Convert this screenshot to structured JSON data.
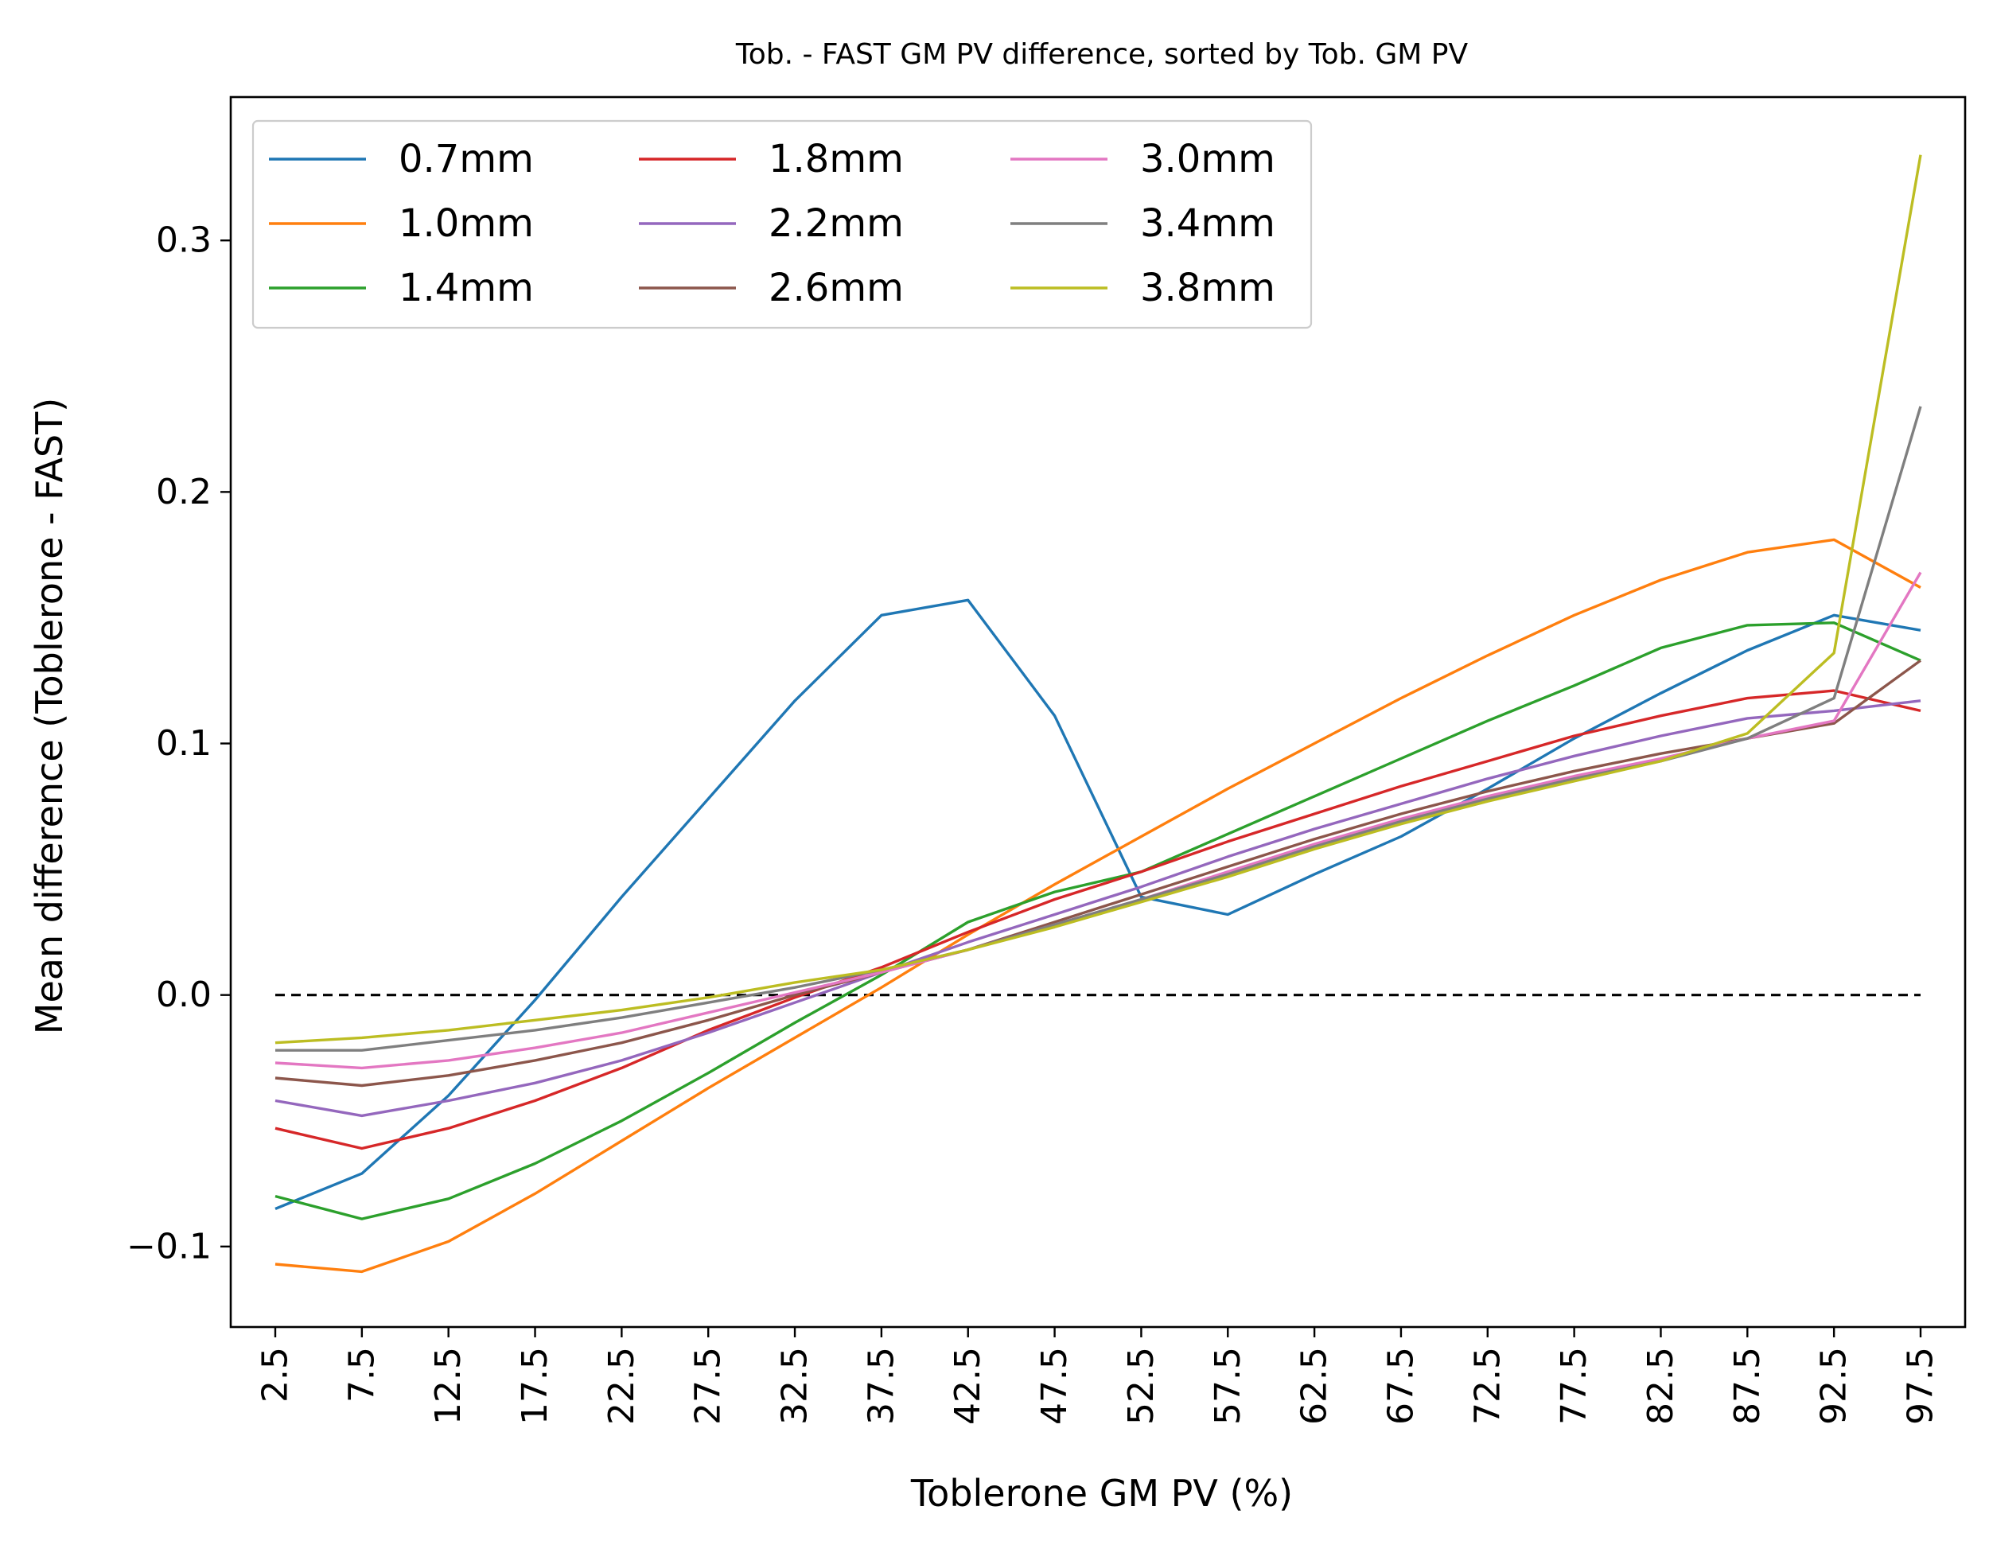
{
  "chart_data": {
    "type": "line",
    "title": "Tob. - FAST GM PV difference, sorted by Tob. GM PV",
    "xlabel": "Toblerone GM PV (%)",
    "ylabel": "Mean difference (Toblerone - FAST)",
    "categories": [
      "2.5",
      "7.5",
      "12.5",
      "17.5",
      "22.5",
      "27.5",
      "32.5",
      "37.5",
      "42.5",
      "47.5",
      "52.5",
      "57.5",
      "62.5",
      "67.5",
      "72.5",
      "77.5",
      "82.5",
      "87.5",
      "92.5",
      "97.5"
    ],
    "ylim": [
      -0.132,
      0.357
    ],
    "yticks": [
      -0.1,
      0.0,
      0.1,
      0.2,
      0.3
    ],
    "ytick_labels": [
      "−0.1",
      "0.0",
      "0.1",
      "0.2",
      "0.3"
    ],
    "grid": false,
    "legend": {
      "location": "upper-left",
      "columns": 3
    },
    "reference_line": {
      "y": 0.0,
      "style": "dashed",
      "color": "#000000"
    },
    "series": [
      {
        "name": "0.7mm",
        "color": "#1f77b4",
        "values": [
          -0.085,
          -0.071,
          -0.04,
          -0.002,
          0.039,
          0.078,
          0.117,
          0.151,
          0.157,
          0.111,
          0.039,
          0.032,
          0.048,
          0.063,
          0.082,
          0.102,
          0.12,
          0.137,
          0.151,
          0.145
        ]
      },
      {
        "name": "1.0mm",
        "color": "#ff7f0e",
        "values": [
          -0.107,
          -0.11,
          -0.098,
          -0.079,
          -0.058,
          -0.037,
          -0.017,
          0.003,
          0.024,
          0.044,
          0.063,
          0.082,
          0.1,
          0.118,
          0.135,
          0.151,
          0.165,
          0.176,
          0.181,
          0.162
        ]
      },
      {
        "name": "1.4mm",
        "color": "#2ca02c",
        "values": [
          -0.08,
          -0.089,
          -0.081,
          -0.067,
          -0.05,
          -0.031,
          -0.011,
          0.008,
          0.029,
          0.041,
          0.049,
          0.064,
          0.079,
          0.094,
          0.109,
          0.123,
          0.138,
          0.147,
          0.148,
          0.133
        ]
      },
      {
        "name": "1.8mm",
        "color": "#d62728",
        "values": [
          -0.053,
          -0.061,
          -0.053,
          -0.042,
          -0.029,
          -0.014,
          -0.001,
          0.011,
          0.025,
          0.038,
          0.049,
          0.061,
          0.072,
          0.083,
          0.093,
          0.103,
          0.111,
          0.118,
          0.121,
          0.113
        ]
      },
      {
        "name": "2.2mm",
        "color": "#9467bd",
        "values": [
          -0.042,
          -0.048,
          -0.042,
          -0.035,
          -0.026,
          -0.015,
          -0.003,
          0.009,
          0.021,
          0.032,
          0.043,
          0.055,
          0.066,
          0.076,
          0.086,
          0.095,
          0.103,
          0.11,
          0.113,
          0.117
        ]
      },
      {
        "name": "2.6mm",
        "color": "#8c564b",
        "values": [
          -0.033,
          -0.036,
          -0.032,
          -0.026,
          -0.019,
          -0.01,
          0.0,
          0.009,
          0.018,
          0.029,
          0.04,
          0.051,
          0.062,
          0.072,
          0.081,
          0.089,
          0.096,
          0.102,
          0.108,
          0.133
        ]
      },
      {
        "name": "3.0mm",
        "color": "#e377c2",
        "values": [
          -0.027,
          -0.029,
          -0.026,
          -0.021,
          -0.015,
          -0.007,
          0.001,
          0.009,
          0.018,
          0.028,
          0.038,
          0.049,
          0.06,
          0.07,
          0.079,
          0.087,
          0.094,
          0.102,
          0.109,
          0.168
        ]
      },
      {
        "name": "3.4mm",
        "color": "#7f7f7f",
        "values": [
          -0.022,
          -0.022,
          -0.018,
          -0.014,
          -0.009,
          -0.003,
          0.003,
          0.01,
          0.018,
          0.028,
          0.038,
          0.048,
          0.059,
          0.069,
          0.078,
          0.086,
          0.093,
          0.102,
          0.118,
          0.234
        ]
      },
      {
        "name": "3.8mm",
        "color": "#bcbd22",
        "values": [
          -0.019,
          -0.017,
          -0.014,
          -0.01,
          -0.006,
          -0.001,
          0.005,
          0.01,
          0.018,
          0.027,
          0.037,
          0.047,
          0.058,
          0.068,
          0.077,
          0.085,
          0.093,
          0.104,
          0.136,
          0.334
        ]
      }
    ]
  }
}
